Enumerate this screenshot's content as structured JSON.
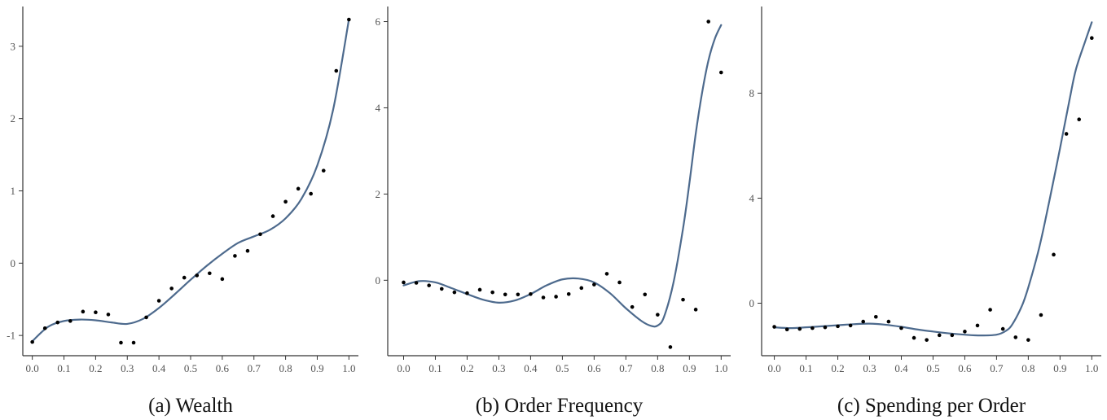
{
  "chart_data": [
    {
      "type": "scatter",
      "caption": "(a) Wealth",
      "xlabel": "",
      "ylabel": "",
      "xlim": [
        -0.03,
        1.03
      ],
      "ylim": [
        -1.28,
        3.55
      ],
      "x_ticks": [
        0.0,
        0.1,
        0.2,
        0.3,
        0.4,
        0.5,
        0.6,
        0.7,
        0.8,
        0.9,
        1.0
      ],
      "x_tick_labels": [
        "0.0",
        "0.1",
        "0.2",
        "0.3",
        "0.4",
        "0.5",
        "0.6",
        "0.7",
        "0.8",
        "0.9",
        "1.0"
      ],
      "y_ticks": [
        -1,
        0,
        1,
        2,
        3
      ],
      "y_tick_labels": [
        "-1",
        "0",
        "1",
        "2",
        "3"
      ],
      "grid": false,
      "points": {
        "x": [
          0.0,
          0.04,
          0.08,
          0.12,
          0.16,
          0.2,
          0.24,
          0.28,
          0.32,
          0.36,
          0.4,
          0.44,
          0.48,
          0.52,
          0.56,
          0.6,
          0.64,
          0.68,
          0.72,
          0.76,
          0.8,
          0.84,
          0.88,
          0.92,
          0.96,
          1.0
        ],
        "y": [
          -1.09,
          -0.9,
          -0.82,
          -0.8,
          -0.67,
          -0.68,
          -0.71,
          -1.1,
          -1.1,
          -0.75,
          -0.52,
          -0.35,
          -0.2,
          -0.17,
          -0.14,
          -0.22,
          0.1,
          0.17,
          0.4,
          0.65,
          0.85,
          1.03,
          0.96,
          1.28,
          2.66,
          3.37
        ]
      },
      "fit_line": {
        "x": [
          0.0,
          0.05,
          0.1,
          0.15,
          0.2,
          0.25,
          0.3,
          0.35,
          0.4,
          0.45,
          0.5,
          0.55,
          0.6,
          0.65,
          0.7,
          0.75,
          0.8,
          0.85,
          0.9,
          0.95,
          1.0
        ],
        "y": [
          -1.08,
          -0.88,
          -0.8,
          -0.78,
          -0.79,
          -0.82,
          -0.84,
          -0.77,
          -0.62,
          -0.43,
          -0.23,
          -0.04,
          0.13,
          0.28,
          0.37,
          0.46,
          0.62,
          0.89,
          1.35,
          2.12,
          3.37
        ]
      }
    },
    {
      "type": "scatter",
      "caption": "(b) Order Frequency",
      "xlabel": "",
      "ylabel": "",
      "xlim": [
        -0.05,
        1.03
      ],
      "ylim": [
        -1.75,
        6.35
      ],
      "x_ticks": [
        0.0,
        0.1,
        0.2,
        0.3,
        0.4,
        0.5,
        0.6,
        0.7,
        0.8,
        0.9,
        1.0
      ],
      "x_tick_labels": [
        "0.0",
        "0.1",
        "0.2",
        "0.3",
        "0.4",
        "0.5",
        "0.6",
        "0.7",
        "0.8",
        "0.9",
        "1.0"
      ],
      "y_ticks": [
        0,
        2,
        4,
        6
      ],
      "y_tick_labels": [
        "0",
        "2",
        "4",
        "6"
      ],
      "grid": false,
      "points": {
        "x": [
          0.0,
          0.04,
          0.08,
          0.12,
          0.16,
          0.2,
          0.24,
          0.28,
          0.32,
          0.36,
          0.4,
          0.44,
          0.48,
          0.52,
          0.56,
          0.6,
          0.64,
          0.68,
          0.72,
          0.76,
          0.8,
          0.84,
          0.88,
          0.92,
          0.96,
          1.0
        ],
        "y": [
          -0.05,
          -0.06,
          -0.12,
          -0.2,
          -0.28,
          -0.3,
          -0.22,
          -0.28,
          -0.33,
          -0.33,
          -0.32,
          -0.4,
          -0.38,
          -0.32,
          -0.18,
          -0.1,
          0.15,
          -0.05,
          -0.62,
          -0.33,
          -0.8,
          -1.55,
          -0.45,
          -0.68,
          6.0,
          4.82
        ]
      },
      "fit_line": {
        "x": [
          0.0,
          0.05,
          0.1,
          0.15,
          0.2,
          0.25,
          0.3,
          0.35,
          0.4,
          0.45,
          0.5,
          0.55,
          0.6,
          0.65,
          0.7,
          0.75,
          0.78,
          0.8,
          0.82,
          0.85,
          0.88,
          0.9,
          0.92,
          0.94,
          0.96,
          0.98,
          1.0
        ],
        "y": [
          -0.12,
          -0.02,
          -0.05,
          -0.18,
          -0.32,
          -0.45,
          -0.52,
          -0.47,
          -0.32,
          -0.12,
          0.02,
          0.04,
          -0.05,
          -0.3,
          -0.65,
          -0.95,
          -1.06,
          -1.05,
          -0.85,
          -0.05,
          1.2,
          2.25,
          3.4,
          4.35,
          5.1,
          5.6,
          5.92
        ]
      }
    },
    {
      "type": "scatter",
      "caption": "(c) Spending per Order",
      "xlabel": "",
      "ylabel": "",
      "xlim": [
        -0.04,
        1.03
      ],
      "ylim": [
        -2.0,
        11.3
      ],
      "x_ticks": [
        0.0,
        0.1,
        0.2,
        0.3,
        0.4,
        0.5,
        0.6,
        0.7,
        0.8,
        0.9,
        1.0
      ],
      "x_tick_labels": [
        "0.0",
        "0.1",
        "0.2",
        "0.3",
        "0.4",
        "0.5",
        "0.6",
        "0.7",
        "0.8",
        "0.9",
        "1.0"
      ],
      "y_ticks": [
        0,
        4,
        8
      ],
      "y_tick_labels": [
        "0",
        "4",
        "8"
      ],
      "grid": false,
      "points": {
        "x": [
          0.0,
          0.04,
          0.08,
          0.12,
          0.16,
          0.2,
          0.24,
          0.28,
          0.32,
          0.36,
          0.4,
          0.44,
          0.48,
          0.52,
          0.56,
          0.6,
          0.64,
          0.68,
          0.72,
          0.76,
          0.8,
          0.84,
          0.88,
          0.92,
          0.96,
          1.0
        ],
        "y": [
          -0.9,
          -1.0,
          -0.98,
          -0.95,
          -0.92,
          -0.88,
          -0.85,
          -0.7,
          -0.52,
          -0.7,
          -0.95,
          -1.32,
          -1.4,
          -1.22,
          -1.22,
          -1.08,
          -0.85,
          -0.25,
          -0.98,
          -1.3,
          -1.4,
          -0.45,
          1.85,
          6.45,
          7.0,
          10.1
        ]
      },
      "fit_line": {
        "x": [
          0.0,
          0.05,
          0.1,
          0.15,
          0.2,
          0.25,
          0.3,
          0.35,
          0.4,
          0.45,
          0.5,
          0.55,
          0.6,
          0.65,
          0.7,
          0.73,
          0.75,
          0.78,
          0.8,
          0.83,
          0.85,
          0.88,
          0.9,
          0.93,
          0.95,
          0.98,
          1.0
        ],
        "y": [
          -0.92,
          -0.95,
          -0.92,
          -0.88,
          -0.84,
          -0.8,
          -0.78,
          -0.82,
          -0.9,
          -1.0,
          -1.08,
          -1.15,
          -1.2,
          -1.23,
          -1.2,
          -1.05,
          -0.8,
          -0.1,
          0.6,
          1.9,
          2.95,
          4.7,
          5.9,
          7.75,
          8.9,
          10.0,
          10.7
        ]
      }
    }
  ],
  "colors": {
    "fit_line": "#4d6a8d",
    "points": "#000000",
    "axis": "#333333"
  }
}
